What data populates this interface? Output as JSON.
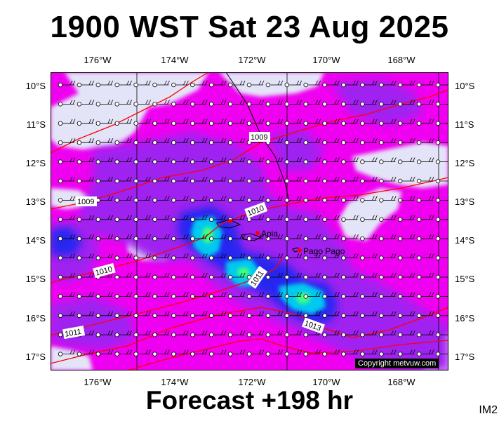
{
  "title": "1900 WST Sat 23 Aug 2025",
  "footer": "Forecast +198 hr",
  "image_code": "IM2",
  "copyright": "Copyright metvuw.com",
  "lon_labels": [
    "176°W",
    "174°W",
    "172°W",
    "170°W",
    "168°W"
  ],
  "lat_labels": [
    "10°S",
    "11°S",
    "12°S",
    "13°S",
    "14°S",
    "15°S",
    "16°S",
    "17°S"
  ],
  "isobars": [
    {
      "label": "1009",
      "value": 1009
    },
    {
      "label": "1009",
      "value": 1009
    },
    {
      "label": "1010",
      "value": 1010
    },
    {
      "label": "1010",
      "value": 1010
    },
    {
      "label": "1011",
      "value": 1011
    },
    {
      "label": "1011",
      "value": 1011
    },
    {
      "label": "1013",
      "value": 1013
    }
  ],
  "places": [
    {
      "name": "Apia"
    },
    {
      "name": "Pago Pago"
    }
  ],
  "colors": {
    "background_magenta": "#f000f0",
    "light_lavender": "#e4e4f8",
    "violet": "#a020f0",
    "blue": "#2828f0",
    "cyan": "#00c8f0",
    "green": "#40ff80",
    "isobar_red": "#ff0000",
    "place_red": "#ff0000"
  }
}
